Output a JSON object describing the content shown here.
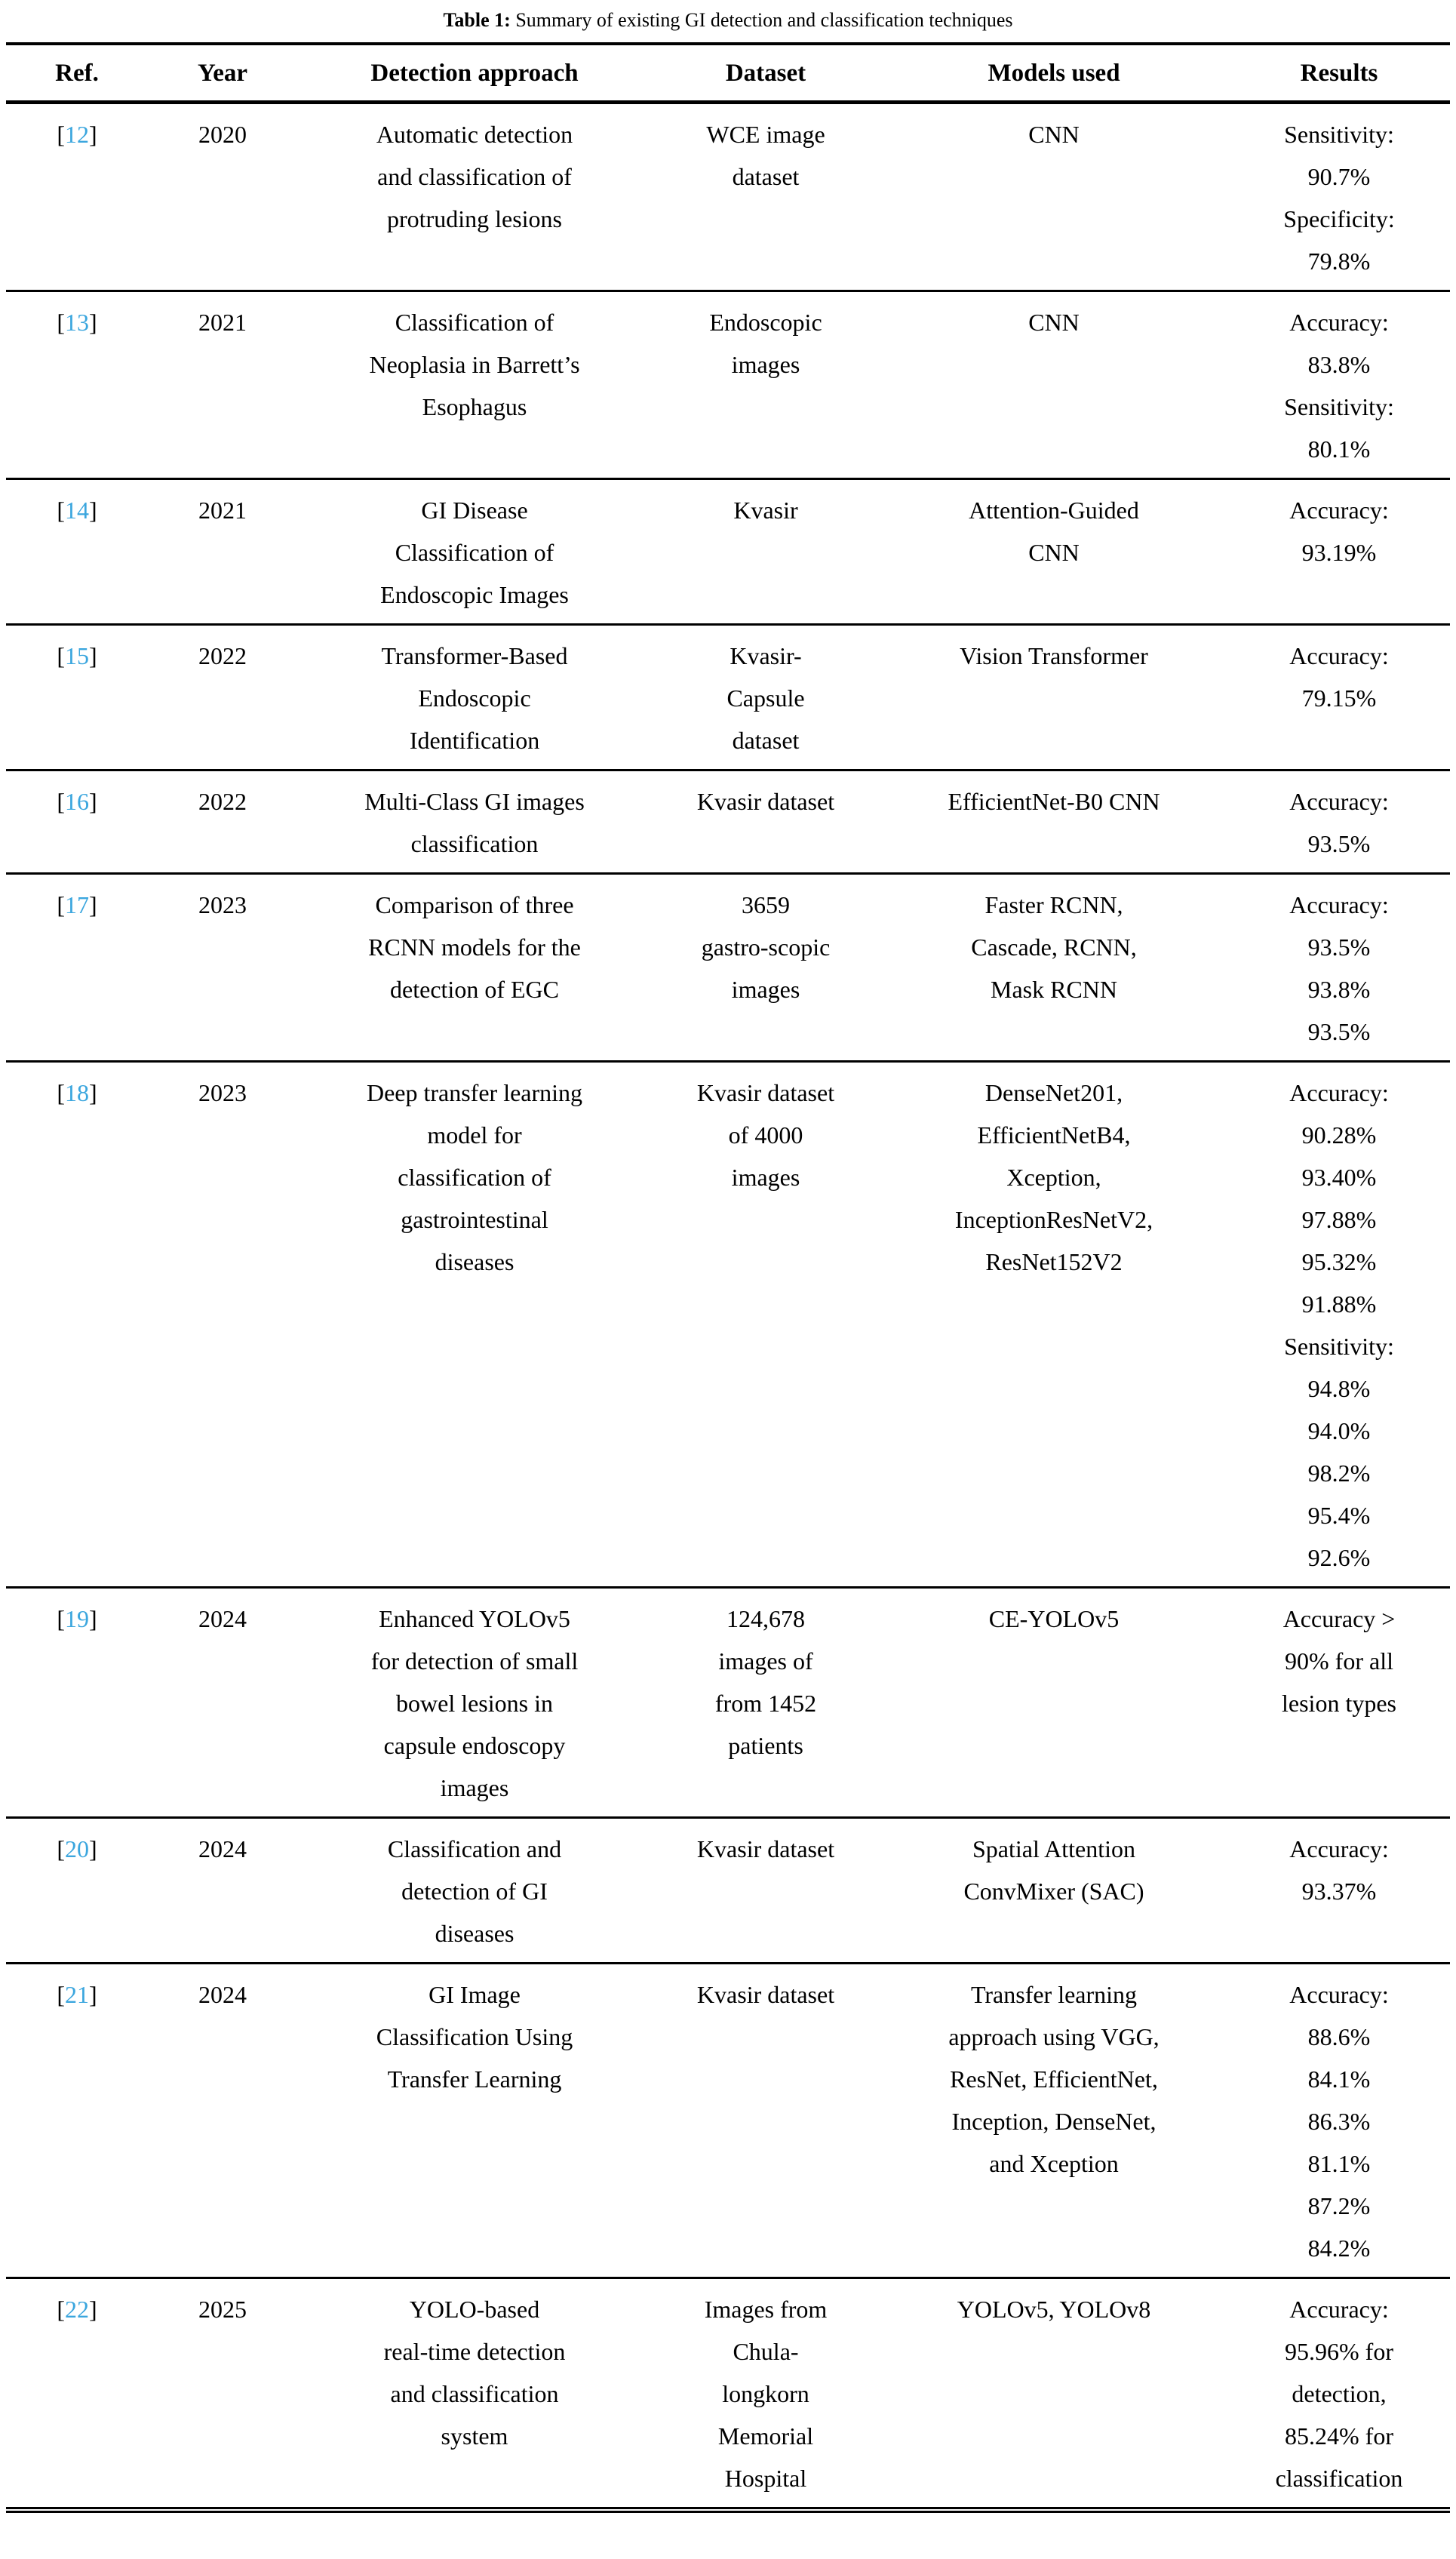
{
  "caption": {
    "label": "Table 1:",
    "text": "Summary of existing GI detection and classification techniques"
  },
  "punct": {
    "open_bracket": "[",
    "close_bracket": "]"
  },
  "colors": {
    "ref_link": "#3BA6DE",
    "text": "#000000",
    "rule": "#000000"
  },
  "columns": {
    "ref": "Ref.",
    "year": "Year",
    "approach": "Detection approach",
    "dataset": "Dataset",
    "models": "Models used",
    "results": "Results"
  },
  "rows": [
    {
      "ref": "12",
      "year": "2020",
      "approach": [
        "Automatic detection",
        "and classification of",
        "protruding lesions"
      ],
      "dataset": [
        "WCE image",
        "dataset"
      ],
      "models": [
        "CNN"
      ],
      "results": [
        "Sensitivity:",
        "90.7%",
        "Specificity:",
        "79.8%"
      ]
    },
    {
      "ref": "13",
      "year": "2021",
      "approach": [
        "Classification of",
        "Neoplasia in Barrett’s",
        "Esophagus"
      ],
      "dataset": [
        "Endoscopic",
        "images"
      ],
      "models": [
        "CNN"
      ],
      "results": [
        "Accuracy:",
        "83.8%",
        "Sensitivity:",
        "80.1%"
      ]
    },
    {
      "ref": "14",
      "year": "2021",
      "approach": [
        "GI Disease",
        "Classification of",
        "Endoscopic Images"
      ],
      "dataset": [
        "Kvasir"
      ],
      "models": [
        "Attention-Guided",
        "CNN"
      ],
      "results": [
        "Accuracy:",
        "93.19%"
      ]
    },
    {
      "ref": "15",
      "year": "2022",
      "approach": [
        "Transformer-Based",
        "Endoscopic",
        "Identification"
      ],
      "dataset": [
        "Kvasir-",
        "Capsule",
        "dataset"
      ],
      "models": [
        "Vision Transformer"
      ],
      "results": [
        "Accuracy:",
        "79.15%"
      ]
    },
    {
      "ref": "16",
      "year": "2022",
      "approach": [
        "Multi-Class GI images",
        "classification"
      ],
      "dataset": [
        "Kvasir dataset"
      ],
      "models": [
        "EfficientNet-B0 CNN"
      ],
      "results": [
        "Accuracy:",
        "93.5%"
      ]
    },
    {
      "ref": "17",
      "year": "2023",
      "approach": [
        "Comparison of three",
        "RCNN models for the",
        "detection of EGC"
      ],
      "dataset": [
        "3659",
        "gastro-scopic",
        "images"
      ],
      "models": [
        "Faster RCNN,",
        "Cascade, RCNN,",
        "Mask RCNN"
      ],
      "results": [
        "Accuracy:",
        "93.5%",
        "93.8%",
        "93.5%"
      ]
    },
    {
      "ref": "18",
      "year": "2023",
      "approach": [
        "Deep transfer learning",
        "model for",
        "classification of",
        "gastrointestinal",
        "diseases"
      ],
      "dataset": [
        "Kvasir dataset",
        "of 4000",
        "images"
      ],
      "models": [
        "DenseNet201,",
        "EfficientNetB4,",
        "Xception,",
        "InceptionResNetV2,",
        "ResNet152V2"
      ],
      "results": [
        "Accuracy:",
        "90.28%",
        "93.40%",
        "97.88%",
        "95.32%",
        "91.88%",
        "Sensitivity:",
        "94.8%",
        "94.0%",
        "98.2%",
        "95.4%",
        "92.6%"
      ]
    },
    {
      "ref": "19",
      "year": "2024",
      "approach": [
        "Enhanced YOLOv5",
        "for detection of small",
        "bowel lesions in",
        "capsule endoscopy",
        "images"
      ],
      "dataset": [
        "124,678",
        "images of",
        "from 1452",
        "patients"
      ],
      "models": [
        "CE-YOLOv5"
      ],
      "results": [
        "Accuracy >",
        "90% for all",
        "lesion types"
      ]
    },
    {
      "ref": "20",
      "year": "2024",
      "approach": [
        "Classification and",
        "detection of GI",
        "diseases"
      ],
      "dataset": [
        "Kvasir dataset"
      ],
      "models": [
        "Spatial Attention",
        "ConvMixer (SAC)"
      ],
      "results": [
        "Accuracy:",
        "93.37%"
      ]
    },
    {
      "ref": "21",
      "year": "2024",
      "approach": [
        "GI Image",
        "Classification Using",
        "Transfer Learning"
      ],
      "dataset": [
        "Kvasir dataset"
      ],
      "models": [
        "Transfer learning",
        "approach using VGG,",
        "ResNet, EfficientNet,",
        "Inception, DenseNet,",
        "and Xception"
      ],
      "results": [
        "Accuracy:",
        "88.6%",
        "84.1%",
        "86.3%",
        "81.1%",
        "87.2%",
        "84.2%"
      ]
    },
    {
      "ref": "22",
      "year": "2025",
      "approach": [
        "YOLO-based",
        "real-time detection",
        "and classification",
        "system"
      ],
      "dataset": [
        "Images from",
        "Chula-",
        "longkorn",
        "Memorial",
        "Hospital"
      ],
      "models": [
        "YOLOv5, YOLOv8"
      ],
      "results": [
        "Accuracy:",
        "95.96% for",
        "detection,",
        "85.24% for",
        "classification"
      ]
    }
  ]
}
